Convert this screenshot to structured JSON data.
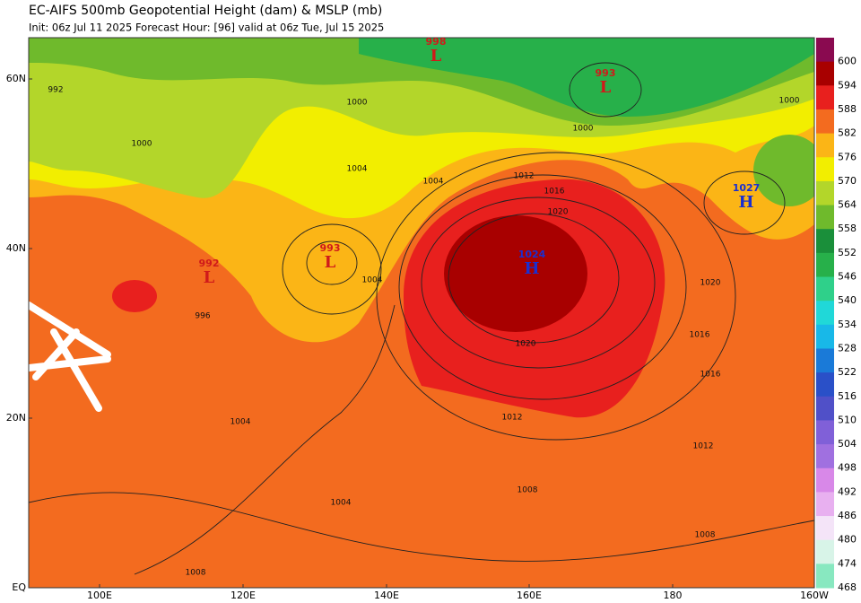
{
  "header": {
    "title": "EC-AIFS 500mb Geopotential Height (dam) & MSLP (mb)",
    "subtitle": "Init: 06z Jul 11 2025   Forecast Hour: [96]   valid at 06z Tue, Jul 15 2025"
  },
  "map": {
    "lat_labels": [
      "60N",
      "40N",
      "20N",
      "EQ"
    ],
    "lon_labels": [
      "100E",
      "120E",
      "140E",
      "160E",
      "180",
      "160W"
    ],
    "pressure_centers": [
      {
        "kind": "H",
        "value": "1024"
      },
      {
        "kind": "H",
        "value": "1027"
      },
      {
        "kind": "L",
        "value": "993"
      },
      {
        "kind": "L",
        "value": "992"
      },
      {
        "kind": "L",
        "value": "998"
      },
      {
        "kind": "L",
        "value": "993"
      }
    ],
    "isobar_labels": [
      "1020",
      "1016",
      "1012",
      "1020",
      "1020",
      "1016",
      "1016",
      "1012",
      "1012",
      "1008",
      "1008",
      "1004",
      "1004",
      "1008",
      "1004",
      "1004",
      "1000",
      "1000",
      "1000",
      "996",
      "992",
      "1000",
      "1004"
    ]
  },
  "colorbar": {
    "levels": [
      600,
      594,
      588,
      582,
      576,
      570,
      564,
      558,
      552,
      546,
      540,
      534,
      528,
      522,
      516,
      510,
      504,
      498,
      492,
      486,
      480,
      474,
      468
    ],
    "colors": [
      "#8a0a50",
      "#a80000",
      "#e8201e",
      "#f36b1f",
      "#fbb516",
      "#f2ee00",
      "#b3d62a",
      "#6fba2c",
      "#1a8f3a",
      "#27b04a",
      "#2fd08a",
      "#20d8d8",
      "#18b8e8",
      "#1a7ad8",
      "#2a50c8",
      "#5050c8",
      "#8060d8",
      "#a070e0",
      "#d888e8",
      "#e8b0f0",
      "#f4e4f8",
      "#d8f4e8",
      "#88e8c0"
    ]
  }
}
